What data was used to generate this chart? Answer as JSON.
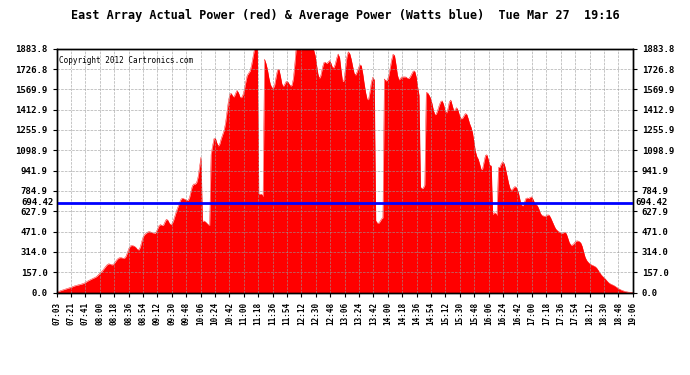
{
  "title": "East Array Actual Power (red) & Average Power (Watts blue)  Tue Mar 27  19:16",
  "copyright": "Copyright 2012 Cartronics.com",
  "avg_power": 694.42,
  "ymin": 0.0,
  "ymax": 1883.8,
  "yticks": [
    0.0,
    157.0,
    314.0,
    471.0,
    627.9,
    784.9,
    941.9,
    1098.9,
    1255.9,
    1412.9,
    1569.9,
    1726.8,
    1883.8
  ],
  "fill_color": "#FF0000",
  "line_color": "#0000FF",
  "avg_label": "694.42",
  "background_color": "#FFFFFF",
  "plot_bg_color": "#FFFFFF",
  "grid_color": "#999999",
  "x_labels": [
    "07:03",
    "07:21",
    "07:41",
    "08:00",
    "08:18",
    "08:36",
    "08:54",
    "09:12",
    "09:30",
    "09:48",
    "10:06",
    "10:24",
    "10:42",
    "11:00",
    "11:18",
    "11:36",
    "11:54",
    "12:12",
    "12:30",
    "12:48",
    "13:06",
    "13:24",
    "13:42",
    "14:00",
    "14:18",
    "14:36",
    "14:54",
    "15:12",
    "15:30",
    "15:48",
    "16:06",
    "16:24",
    "16:42",
    "17:00",
    "17:18",
    "17:36",
    "17:54",
    "18:12",
    "18:30",
    "18:48",
    "19:06"
  ],
  "power_values_per_label": [
    2,
    40,
    80,
    150,
    250,
    320,
    400,
    500,
    600,
    700,
    950,
    1100,
    1400,
    1580,
    1860,
    1850,
    1800,
    1830,
    1820,
    1750,
    1780,
    1750,
    1600,
    1700,
    1680,
    1550,
    1500,
    1420,
    1350,
    1200,
    1050,
    900,
    780,
    700,
    600,
    500,
    380,
    250,
    120,
    30,
    2
  ]
}
